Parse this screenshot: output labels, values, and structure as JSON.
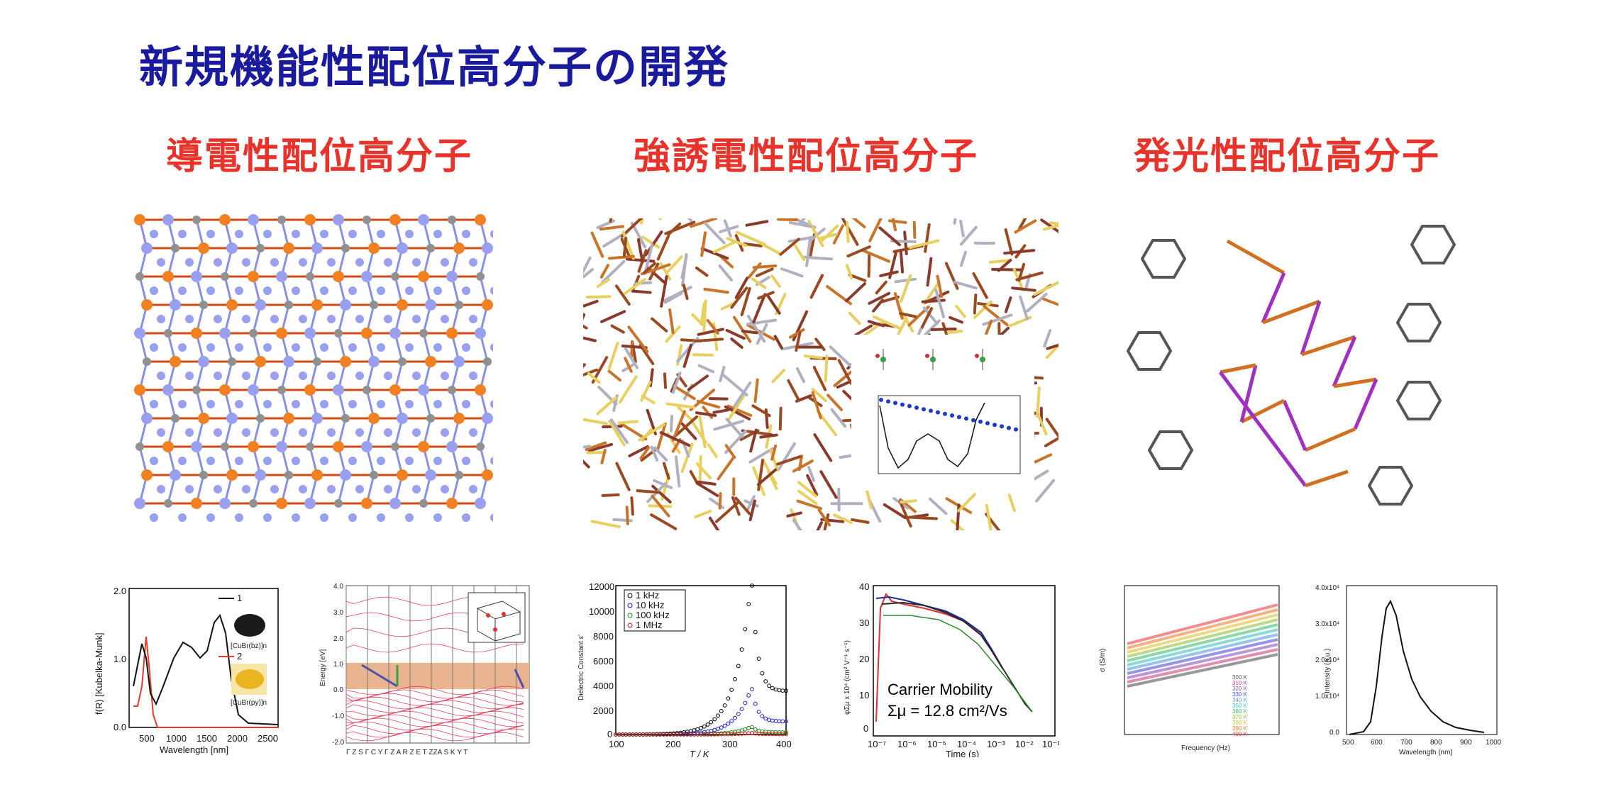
{
  "title": "新規機能性配位高分子の開発",
  "sections": [
    {
      "label": "導電性配位高分子"
    },
    {
      "label": "強誘電性配位高分子"
    },
    {
      "label": "発光性配位高分子"
    }
  ],
  "colors": {
    "title": "#1a1a9e",
    "section": "#e8322a"
  },
  "plot_absorbance": {
    "ylabel": "f(R) [Kubelka-Munk]",
    "xlabel": "Wavelength [nm]",
    "xticks": [
      "500",
      "1000",
      "1500",
      "2000",
      "2500"
    ],
    "yticks": [
      "0.0",
      "1.0",
      "2.0"
    ],
    "legend": [
      "1",
      "2"
    ],
    "sample1": "[CuBr(bz)]n",
    "sample2": "[CuBr(py)]n"
  },
  "plot_band": {
    "ylabel": "Energy [eV]",
    "yticks": [
      "4.0",
      "3.0",
      "2.0",
      "1.0",
      "0.0",
      "-1.0",
      "-2.0"
    ],
    "kpoints": "Γ   Z S   Γ  C Y  Γ Z   A R   Z   E T  ZZA S K Y T"
  },
  "plot_dielectric": {
    "ylabel": "Dielectric Constant ε'",
    "xlabel": "T / K",
    "xticks": [
      "100",
      "200",
      "300",
      "400"
    ],
    "yticks": [
      "0",
      "2000",
      "4000",
      "6000",
      "8000",
      "10000",
      "12000"
    ],
    "legend": [
      "1 kHz",
      "10 kHz",
      "100 kHz",
      "1 MHz"
    ]
  },
  "plot_mobility": {
    "ylabel": "φΣμ x 10⁴ (cm² V⁻¹ s⁻¹)",
    "xlabel": "Time (s)",
    "xticks": [
      "10⁻⁷",
      "10⁻⁶",
      "10⁻⁵",
      "10⁻⁴",
      "10⁻³",
      "10⁻²",
      "10⁻¹"
    ],
    "yticks": [
      "0",
      "10",
      "20",
      "30",
      "40"
    ],
    "annotation1": "Carrier Mobility",
    "annotation2": "Σμ = 12.8 cm²/Vs"
  },
  "plot_conductivity": {
    "ylabel": "σ (S/m)",
    "xlabel": "Frequency (Hz)",
    "legend": [
      "300 K",
      "310 K",
      "320 K",
      "330 K",
      "340 K",
      "350 K",
      "360 K",
      "370 K",
      "380 K",
      "390 K",
      "400 K"
    ]
  },
  "plot_emission": {
    "ylabel": "Intensity (a.u.)",
    "xlabel": "Wavelength (nm)",
    "xticks": [
      "500",
      "600",
      "700",
      "800",
      "900",
      "1000"
    ],
    "yticks": [
      "0.0",
      "1.0x10⁴",
      "2.0x10⁴",
      "3.0x10⁴",
      "4.0x10⁴"
    ]
  }
}
